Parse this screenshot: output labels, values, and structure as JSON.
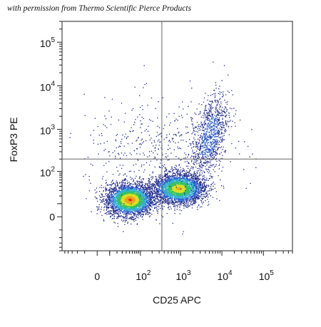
{
  "caption": "with permission from Thermo Scientific Pierce Products",
  "chart_data": {
    "type": "scatter",
    "style": "flow-cytometry density dot plot (biexponential axes)",
    "title": "",
    "xlabel": "CD25 APC",
    "ylabel": "FoxP3 PE",
    "x_scale": "biexponential",
    "y_scale": "biexponential",
    "xlim": [
      -60,
      500000
    ],
    "ylim": [
      -50,
      300000
    ],
    "x_ticks": [
      {
        "value": 0,
        "base": "0",
        "exp": ""
      },
      {
        "value": 100,
        "base": "10",
        "exp": "2"
      },
      {
        "value": 1000,
        "base": "10",
        "exp": "3"
      },
      {
        "value": 10000,
        "base": "10",
        "exp": "4"
      },
      {
        "value": 100000,
        "base": "10",
        "exp": "5"
      }
    ],
    "y_ticks": [
      {
        "value": 0,
        "base": "0",
        "exp": ""
      },
      {
        "value": 100,
        "base": "10",
        "exp": "2"
      },
      {
        "value": 1000,
        "base": "10",
        "exp": "3"
      },
      {
        "value": 10000,
        "base": "10",
        "exp": "4"
      },
      {
        "value": 100000,
        "base": "10",
        "exp": "5"
      }
    ],
    "quadrant_gate": {
      "x": 350,
      "y": 200
    },
    "populations": [
      {
        "name": "CD25-negative",
        "center": [
          50,
          15
        ],
        "density": "highest"
      },
      {
        "name": "CD25-positive FoxP3-low",
        "center": [
          1000,
          40
        ],
        "density": "high"
      },
      {
        "name": "CD25-high FoxP3-positive",
        "center": [
          6000,
          800
        ],
        "density": "low"
      }
    ],
    "density_colors": [
      "#1f2a8c",
      "#2f5fd0",
      "#2fb0d0",
      "#36c060",
      "#d8e020",
      "#f0a020",
      "#e82010"
    ],
    "grid": false,
    "legend": "none"
  }
}
